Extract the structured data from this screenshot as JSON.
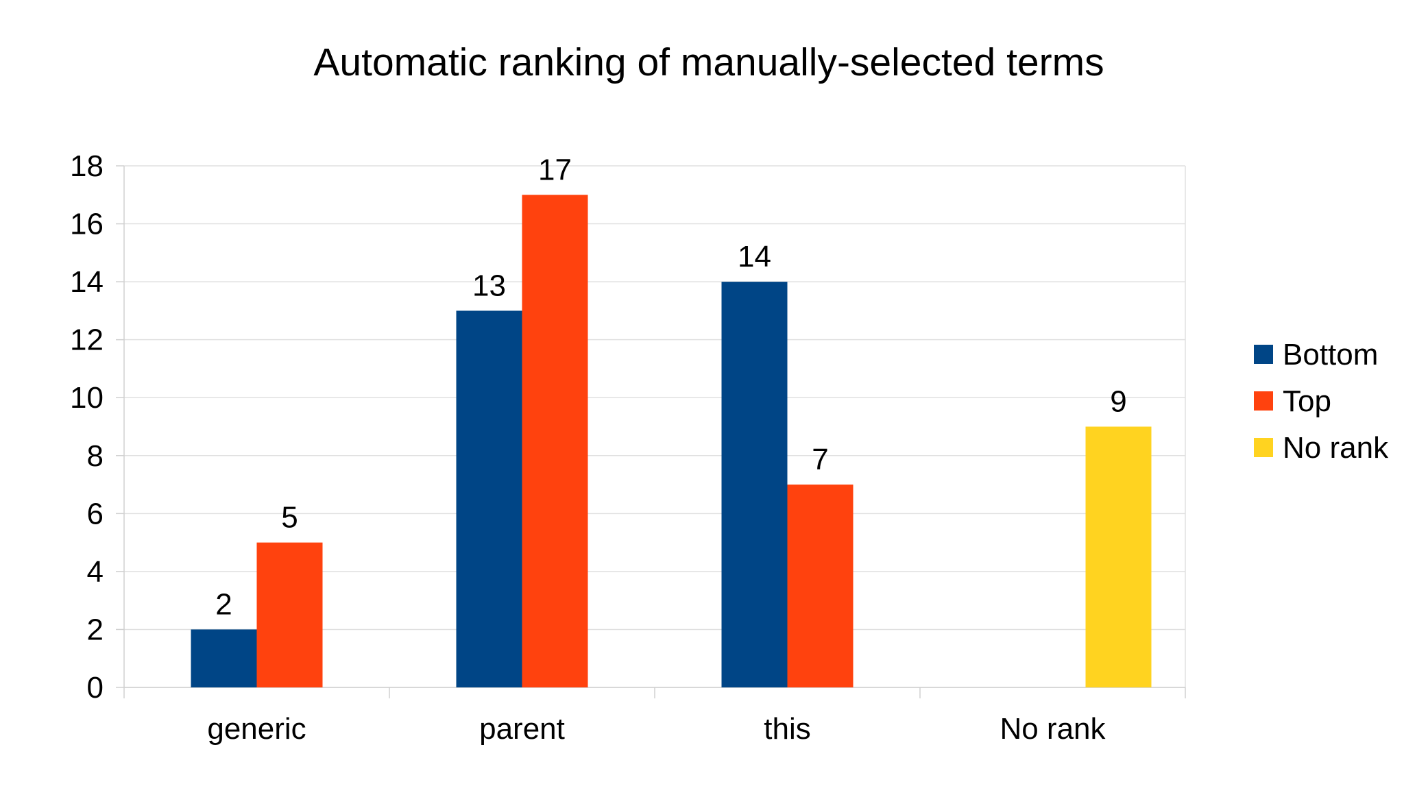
{
  "chart_data": {
    "type": "bar",
    "title": "Automatic ranking of manually-selected terms",
    "xlabel": "",
    "ylabel": "",
    "categories": [
      "generic",
      "parent",
      "this",
      "No rank"
    ],
    "series": [
      {
        "name": "Bottom",
        "values": [
          2,
          13,
          14,
          null
        ],
        "color": "#004586"
      },
      {
        "name": "Top",
        "values": [
          5,
          17,
          7,
          null
        ],
        "color": "#ff420e"
      },
      {
        "name": "No rank",
        "values": [
          null,
          null,
          null,
          9
        ],
        "color": "#ffd320"
      }
    ],
    "ylim": [
      0,
      18
    ],
    "yticks": [
      0,
      2,
      4,
      6,
      8,
      10,
      12,
      14,
      16,
      18
    ],
    "grid": true,
    "legend_position": "right",
    "data_labels": true
  }
}
